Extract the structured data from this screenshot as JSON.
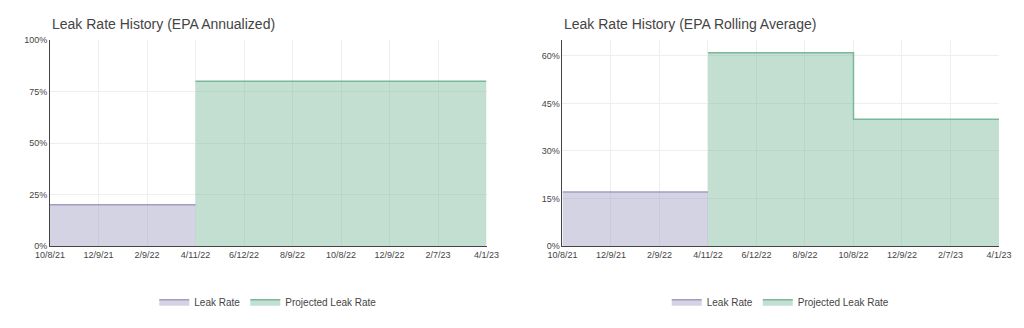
{
  "chart_data": [
    {
      "type": "area",
      "title": "Leak Rate History (EPA Annualized)",
      "categories": [
        "10/8/21",
        "12/9/21",
        "2/9/22",
        "4/11/22",
        "6/12/22",
        "8/9/22",
        "10/8/22",
        "12/9/22",
        "2/7/23",
        "4/1/23"
      ],
      "series": [
        {
          "name": "Leak Rate",
          "color": "#a09ec0",
          "values": [
            20,
            20,
            20,
            20,
            null,
            null,
            null,
            null,
            null,
            null
          ]
        },
        {
          "name": "Projected Leak Rate",
          "color": "#7ab89a",
          "values": [
            null,
            null,
            null,
            80,
            80,
            80,
            80,
            80,
            80,
            80
          ]
        }
      ],
      "ylim": [
        0,
        100
      ],
      "yticks": [
        {
          "value": 0,
          "label": "0%"
        },
        {
          "value": 25,
          "label": "25%"
        },
        {
          "value": 50,
          "label": "50%"
        },
        {
          "value": 75,
          "label": "75%"
        },
        {
          "value": 100,
          "label": "100%"
        }
      ],
      "grid": true,
      "line_style": "step",
      "legend": "bottom"
    },
    {
      "type": "area",
      "title": "Leak Rate History (EPA Rolling Average)",
      "categories": [
        "10/8/21",
        "12/9/21",
        "2/9/22",
        "4/11/22",
        "6/12/22",
        "8/9/22",
        "10/8/22",
        "12/9/22",
        "2/7/23",
        "4/1/23"
      ],
      "series": [
        {
          "name": "Leak Rate",
          "color": "#a09ec0",
          "values": [
            17,
            17,
            17,
            17,
            null,
            null,
            null,
            null,
            null,
            null
          ]
        },
        {
          "name": "Projected Leak Rate",
          "color": "#7ab89a",
          "values": [
            null,
            null,
            null,
            61,
            61,
            61,
            40,
            40,
            40,
            40
          ]
        }
      ],
      "ylim": [
        0,
        65
      ],
      "yticks": [
        {
          "value": 0,
          "label": "0%"
        },
        {
          "value": 15,
          "label": "15%"
        },
        {
          "value": 30,
          "label": "30%"
        },
        {
          "value": 45,
          "label": "45%"
        },
        {
          "value": 60,
          "label": "60%"
        }
      ],
      "grid": true,
      "line_style": "step",
      "legend": "bottom"
    }
  ]
}
